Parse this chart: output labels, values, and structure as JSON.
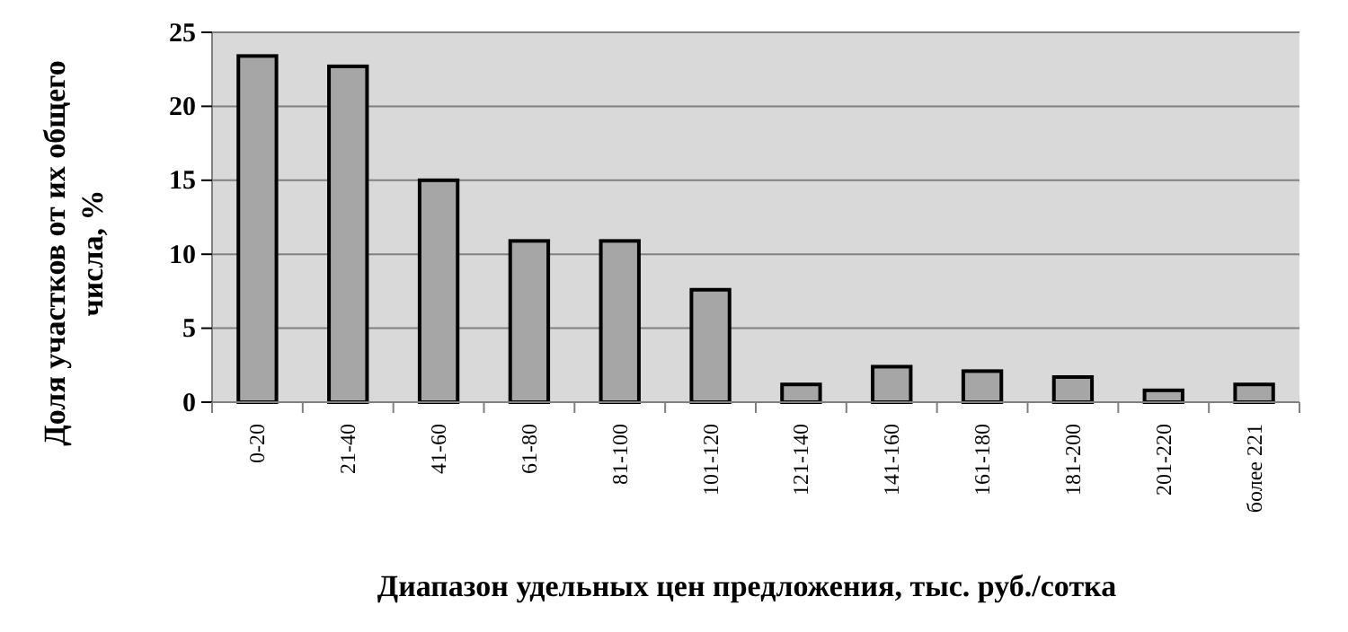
{
  "chart_data": {
    "type": "bar",
    "xlabel": "Диапазон удельных цен предложения, тыс. руб./сотка",
    "ylabel": "Доля участков от их общего числа, %",
    "categories": [
      "0-20",
      "21-40",
      "41-60",
      "61-80",
      "81-100",
      "101-120",
      "121-140",
      "141-160",
      "161-180",
      "181-200",
      "201-220",
      "более 221"
    ],
    "values": [
      23.4,
      22.7,
      15.0,
      10.9,
      10.9,
      7.6,
      1.2,
      2.4,
      2.1,
      1.7,
      0.8,
      1.2
    ],
    "color": "#a6a6a6",
    "ylim": [
      0,
      25
    ],
    "yticks": [
      0,
      5,
      10,
      15,
      20,
      25
    ],
    "grid": "y"
  }
}
